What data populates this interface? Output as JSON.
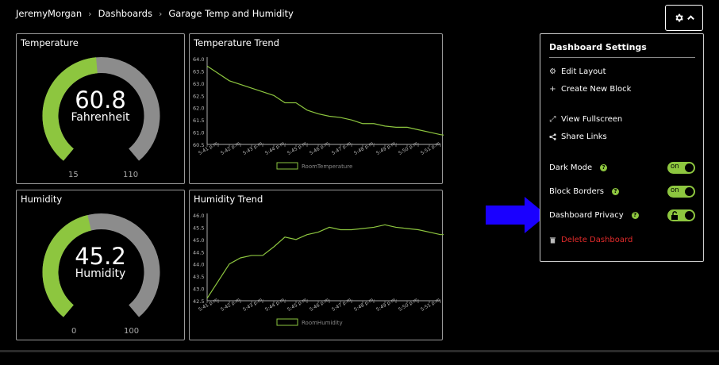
{
  "breadcrumb": {
    "items": [
      "JeremyMorgan",
      "Dashboards",
      "Garage Temp and Humidity"
    ]
  },
  "temperature_gauge": {
    "title": "Temperature",
    "value": "60.8",
    "unit": "Fahrenheit",
    "min": "15",
    "max": "110",
    "value_num": 60.8,
    "min_num": 15,
    "max_num": 110
  },
  "humidity_gauge": {
    "title": "Humidity",
    "value": "45.2",
    "unit": "Humidity",
    "min": "0",
    "max": "100",
    "value_num": 45.2,
    "min_num": 0,
    "max_num": 100
  },
  "temperature_trend": {
    "title": "Temperature Trend"
  },
  "humidity_trend": {
    "title": "Humidity Trend"
  },
  "menu": {
    "title": "Dashboard Settings",
    "edit_layout": "Edit Layout",
    "create_block": "Create New Block",
    "view_fullscreen": "View Fullscreen",
    "share_links": "Share Links",
    "dark_mode": "Dark Mode",
    "block_borders": "Block Borders",
    "dashboard_privacy": "Dashboard Privacy",
    "delete_dashboard": "Delete Dashboard",
    "toggle_on": "on",
    "help": "?"
  },
  "colors": {
    "accent": "#8dc63f",
    "gauge_track": "#8c8c8c",
    "arrow": "#1a00ff",
    "danger": "#e32b2b"
  },
  "chart_data": [
    {
      "type": "line",
      "title": "Temperature Trend",
      "categories": [
        "5:41 p.m.",
        "5:42 p.m.",
        "5:43 p.m.",
        "5:44 p.m.",
        "5:45 p.m.",
        "5:46 p.m.",
        "5:47 p.m.",
        "5:48 p.m.",
        "5:49 p.m.",
        "5:50 p.m.",
        "5:51 p.m."
      ],
      "y_ticks": [
        "64.0",
        "63.5",
        "63.0",
        "62.5",
        "62.0",
        "61.5",
        "61.0",
        "60.5"
      ],
      "ylim": [
        60.5,
        64.0
      ],
      "series": [
        {
          "name": "RoomTemperature",
          "x": [
            0,
            0.5,
            1,
            1.5,
            2,
            2.5,
            3,
            3.5,
            4,
            4.5,
            5,
            5.5,
            6,
            6.5,
            7,
            7.5,
            8,
            8.5,
            9,
            9.5,
            10,
            10.5,
            11.3
          ],
          "values": [
            63.7,
            63.4,
            63.1,
            62.95,
            62.8,
            62.65,
            62.5,
            62.2,
            62.2,
            61.9,
            61.75,
            61.65,
            61.6,
            61.5,
            61.35,
            61.35,
            61.25,
            61.2,
            61.2,
            61.1,
            61.0,
            60.9,
            60.8
          ]
        }
      ],
      "legend": "bottom",
      "grid": false
    },
    {
      "type": "line",
      "title": "Humidity Trend",
      "categories": [
        "5:41 p.m.",
        "5:42 p.m.",
        "5:43 p.m.",
        "5:44 p.m.",
        "5:45 p.m.",
        "5:46 p.m.",
        "5:47 p.m.",
        "5:48 p.m.",
        "5:49 p.m.",
        "5:50 p.m.",
        "5:51 p.m."
      ],
      "y_ticks": [
        "46.0",
        "45.5",
        "45.0",
        "44.5",
        "44.0",
        "43.5",
        "43.0",
        "42.5"
      ],
      "ylim": [
        42.5,
        46.0
      ],
      "series": [
        {
          "name": "RoomHumidity",
          "x": [
            0,
            1,
            1.5,
            2,
            2.5,
            3,
            3.5,
            4,
            4.5,
            5,
            5.5,
            6,
            6.5,
            7,
            7.5,
            8,
            8.5,
            9,
            9.5,
            10,
            10.5,
            11.3
          ],
          "values": [
            42.6,
            44.0,
            44.25,
            44.35,
            44.35,
            44.7,
            45.1,
            45.0,
            45.2,
            45.3,
            45.5,
            45.4,
            45.4,
            45.45,
            45.5,
            45.6,
            45.5,
            45.45,
            45.4,
            45.3,
            45.2,
            45.2
          ]
        }
      ],
      "legend": "bottom",
      "grid": false
    }
  ]
}
